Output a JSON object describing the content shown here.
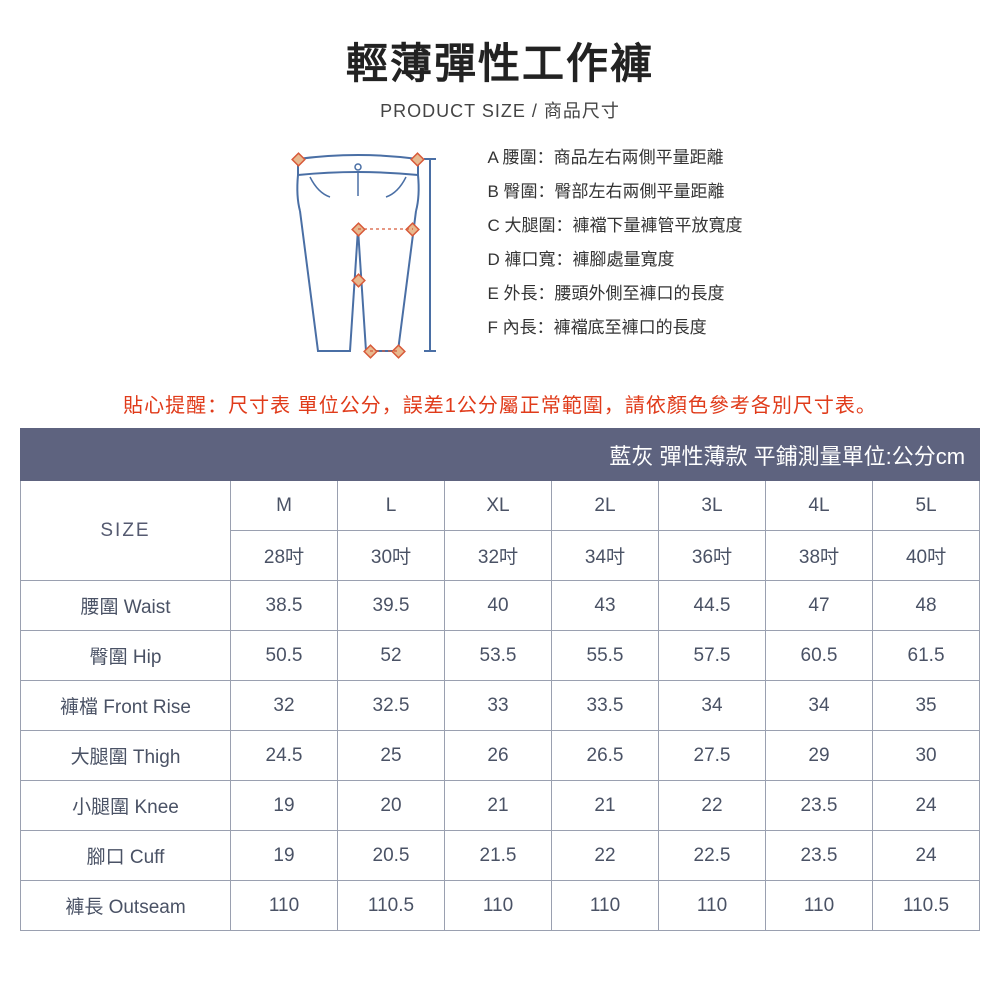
{
  "title": "輕薄彈性工作褲",
  "subtitle": "PRODUCT SIZE / 商品尺寸",
  "legend": [
    "A 腰圍：商品左右兩側平量距離",
    "B 臀圍：臀部左右兩側平量距離",
    "C 大腿圍：褲襠下量褲管平放寬度",
    "D 褲口寬：褲腳處量寬度",
    "E 外長：腰頭外側至褲口的長度",
    "F 內長：褲襠底至褲口的長度"
  ],
  "reminder": "貼心提醒：尺寸表 單位公分，誤差1公分屬正常範圍，請依顏色參考各別尺寸表。",
  "table": {
    "banner": "藍灰 彈性薄款 平鋪測量單位:公分cm",
    "size_label": "SIZE",
    "sizes": [
      "M",
      "L",
      "XL",
      "2L",
      "3L",
      "4L",
      "5L"
    ],
    "inches": [
      "28吋",
      "30吋",
      "32吋",
      "34吋",
      "36吋",
      "38吋",
      "40吋"
    ],
    "rows": [
      {
        "label": "腰圍 Waist",
        "vals": [
          "38.5",
          "39.5",
          "40",
          "43",
          "44.5",
          "47",
          "48"
        ]
      },
      {
        "label": "臀圍 Hip",
        "vals": [
          "50.5",
          "52",
          "53.5",
          "55.5",
          "57.5",
          "60.5",
          "61.5"
        ]
      },
      {
        "label": "褲檔 Front Rise",
        "vals": [
          "32",
          "32.5",
          "33",
          "33.5",
          "34",
          "34",
          "35"
        ]
      },
      {
        "label": "大腿圍 Thigh",
        "vals": [
          "24.5",
          "25",
          "26",
          "26.5",
          "27.5",
          "29",
          "30"
        ]
      },
      {
        "label": "小腿圍 Knee",
        "vals": [
          "19",
          "20",
          "21",
          "21",
          "22",
          "23.5",
          "24"
        ]
      },
      {
        "label": "腳口 Cuff",
        "vals": [
          "19",
          "20.5",
          "21.5",
          "22",
          "22.5",
          "23.5",
          "24"
        ]
      },
      {
        "label": "褲長 Outseam",
        "vals": [
          "110",
          "110.5",
          "110",
          "110",
          "110",
          "110",
          "110.5"
        ]
      }
    ]
  },
  "colors": {
    "banner_bg": "#5e637f",
    "banner_text": "#ffffff",
    "border": "#9aa0b0",
    "text": "#4a5265",
    "reminder": "#e03b1a",
    "diagram_line": "#4a6fa5",
    "diagram_marker": "#d85a3a"
  }
}
